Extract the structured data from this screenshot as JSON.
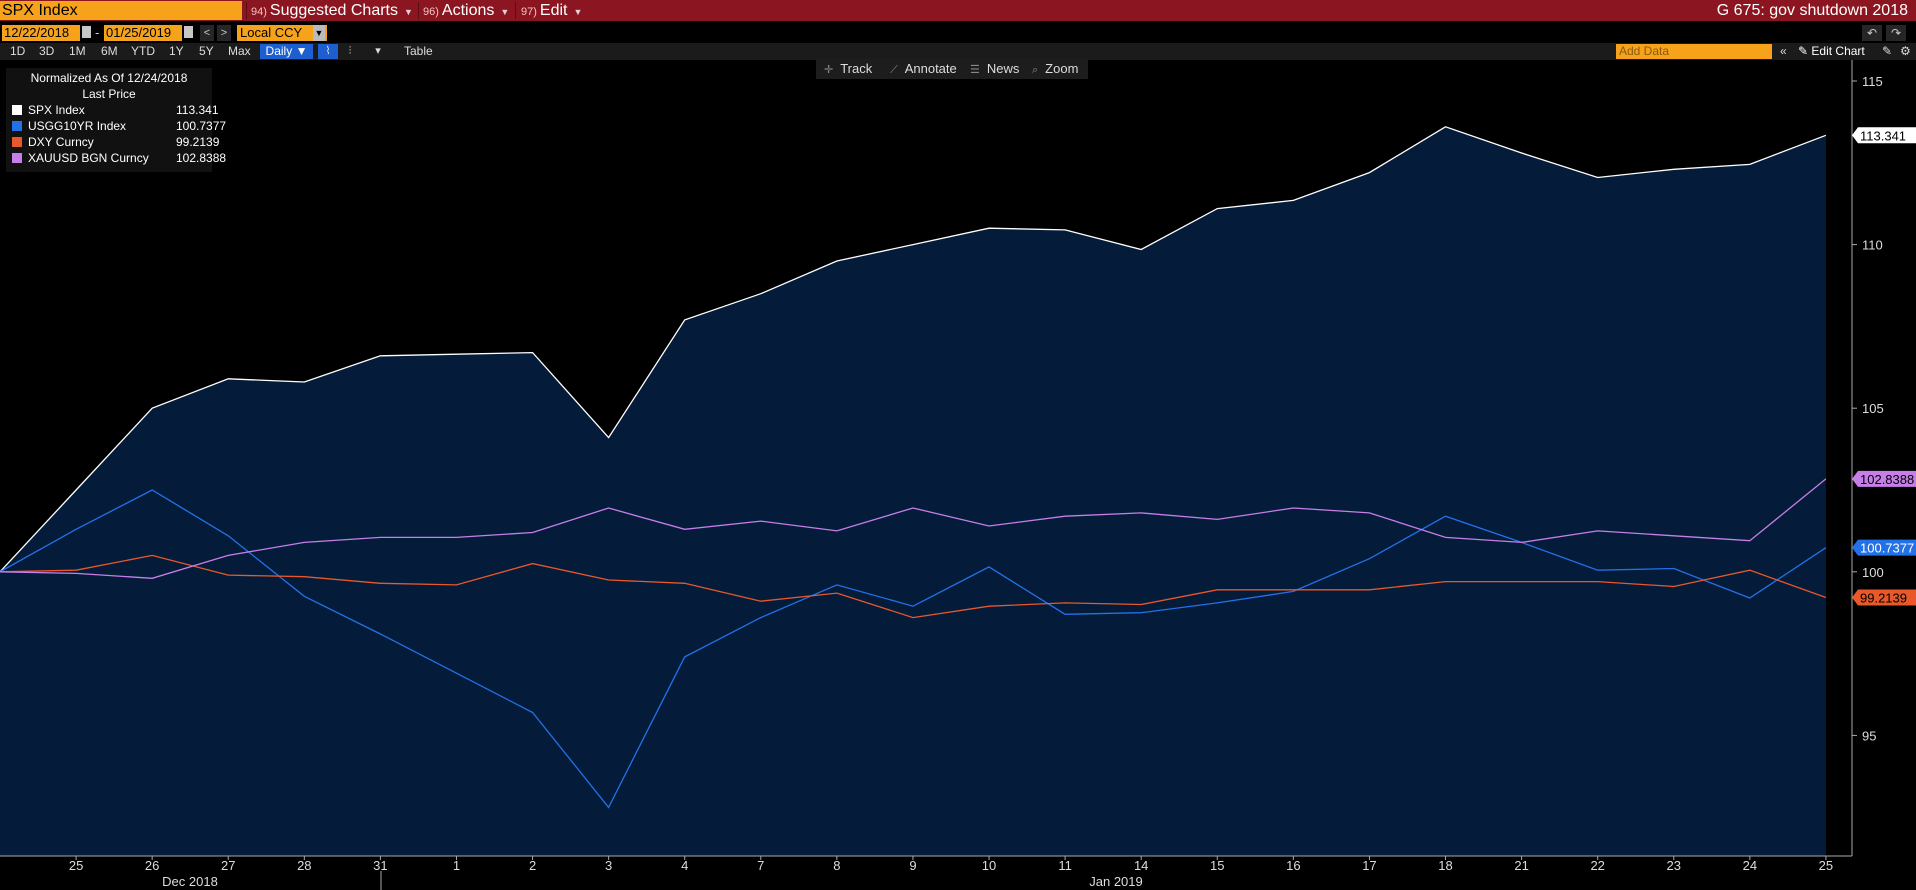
{
  "topbar": {
    "ticker": "SPX Index",
    "menus": [
      {
        "num": "94)",
        "label": "Suggested Charts"
      },
      {
        "num": "96)",
        "label": "Actions"
      },
      {
        "num": "97)",
        "label": "Edit"
      }
    ],
    "chart_title": "G 675: gov shutdown 2018"
  },
  "daterow": {
    "start_date": "12/22/2018",
    "end_date": "01/25/2019",
    "dash": "-",
    "prev": "<",
    "next": ">",
    "currency": "Local CCY"
  },
  "toolbar": {
    "periods": [
      "1D",
      "3D",
      "1M",
      "6M",
      "YTD",
      "1Y",
      "5Y",
      "Max"
    ],
    "frequency": "Daily",
    "table_label": "Table",
    "add_data_placeholder": "Add Data",
    "edit_chart_label": "Edit Chart"
  },
  "chart_tools": [
    "Track",
    "Annotate",
    "News",
    "Zoom"
  ],
  "legend": {
    "title": "Normalized As Of 12/24/2018",
    "subtitle": "Last Price"
  },
  "colors": {
    "spx": "#ffffff",
    "usgg": "#2371e8",
    "dxy": "#e8582a",
    "xau": "#c77ee8",
    "area_fill": "#041c3a",
    "ticker_bg": "#f7a21b",
    "topbar_bg": "#8b1520"
  },
  "chart_data": {
    "type": "line",
    "title": "",
    "x": [
      "24",
      "25",
      "26",
      "27",
      "28",
      "31",
      "1",
      "2",
      "3",
      "4",
      "7",
      "8",
      "9",
      "10",
      "11",
      "14",
      "15",
      "16",
      "17",
      "18",
      "21",
      "22",
      "23",
      "24",
      "25"
    ],
    "x_tick_labels": [
      "25",
      "26",
      "27",
      "28",
      "31",
      "1",
      "2",
      "3",
      "4",
      "7",
      "8",
      "9",
      "10",
      "11",
      "14",
      "15",
      "16",
      "17",
      "18",
      "21",
      "22",
      "23",
      "24",
      "25"
    ],
    "month_labels": [
      "Dec 2018",
      "Jan 2019"
    ],
    "ylim": [
      91.2,
      115.5
    ],
    "yticks": [
      95,
      100,
      105,
      110,
      115
    ],
    "area_series": "SPX Index",
    "series": [
      {
        "name": "SPX Index",
        "color_key": "spx",
        "last": "113.341",
        "values": [
          100,
          102.5,
          105,
          105.9,
          105.8,
          106.6,
          106.65,
          106.7,
          104.1,
          107.7,
          108.5,
          109.5,
          110,
          110.5,
          110.45,
          109.85,
          111.1,
          111.35,
          112.2,
          113.6,
          112.8,
          112.05,
          112.3,
          112.45,
          113.341
        ]
      },
      {
        "name": "USGG10YR Index",
        "color_key": "usgg",
        "last": "100.7377",
        "values": [
          100,
          101.3,
          102.5,
          101.1,
          99.25,
          98.1,
          96.9,
          95.7,
          92.8,
          97.4,
          98.6,
          99.6,
          98.95,
          100.15,
          98.7,
          98.75,
          99.05,
          99.4,
          100.4,
          101.7,
          100.9,
          100.05,
          100.1,
          99.2,
          100.7377
        ]
      },
      {
        "name": "DXY Curncy",
        "color_key": "dxy",
        "last": "99.2139",
        "values": [
          100,
          100.05,
          100.5,
          99.9,
          99.85,
          99.65,
          99.6,
          100.25,
          99.75,
          99.65,
          99.1,
          99.35,
          98.6,
          98.95,
          99.05,
          99.0,
          99.45,
          99.45,
          99.45,
          99.7,
          99.7,
          99.7,
          99.55,
          100.05,
          99.2139
        ]
      },
      {
        "name": "XAUUSD BGN Curncy",
        "color_key": "xau",
        "last": "102.8388",
        "values": [
          100,
          99.95,
          99.8,
          100.5,
          100.9,
          101.05,
          101.05,
          101.2,
          101.95,
          101.3,
          101.55,
          101.25,
          101.95,
          101.4,
          101.7,
          101.8,
          101.6,
          101.95,
          101.8,
          101.05,
          100.9,
          101.25,
          101.1,
          100.95,
          102.8388
        ]
      }
    ]
  }
}
